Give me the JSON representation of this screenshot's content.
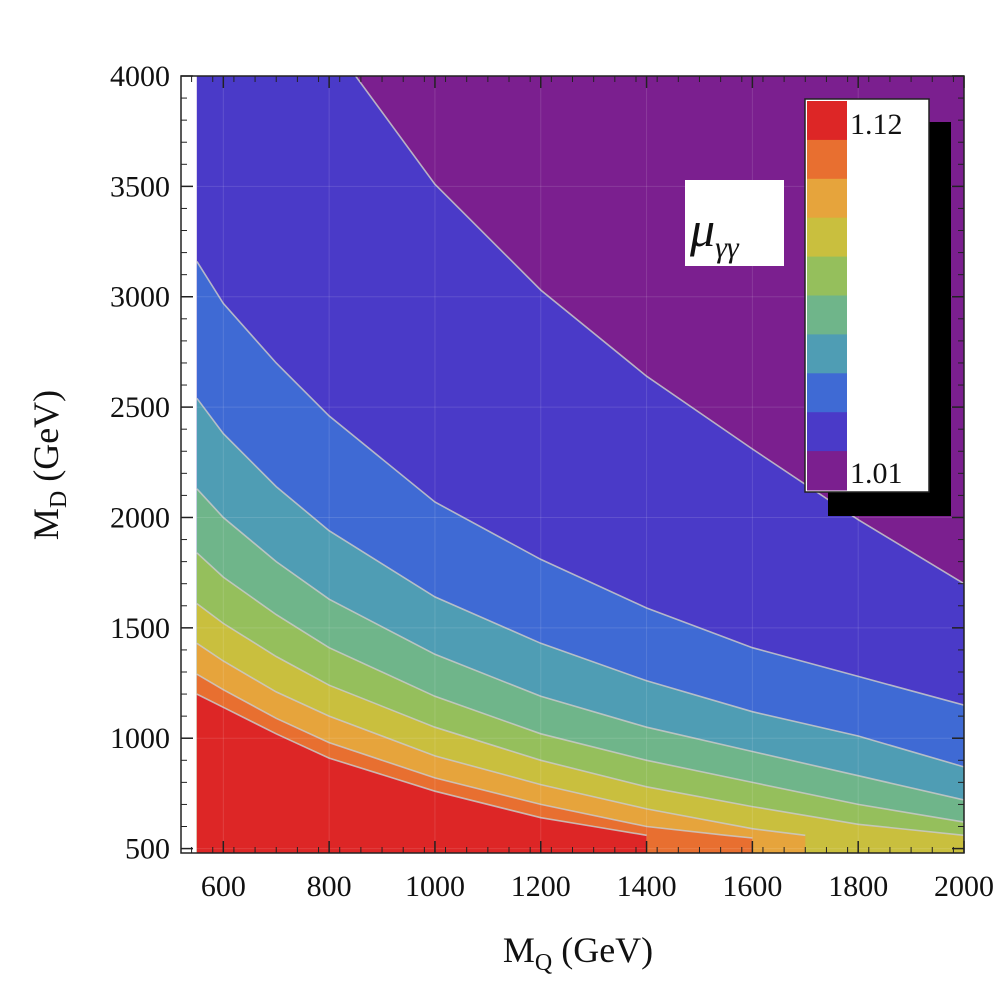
{
  "chart_data": {
    "type": "heatmap",
    "title": "",
    "xlabel": {
      "main": "M",
      "sub": "Q",
      "unit": " (GeV)"
    },
    "ylabel": {
      "main": "M",
      "sub": "D",
      "unit": " (GeV)"
    },
    "xlim": [
      520,
      2000
    ],
    "ylim": [
      480,
      4000
    ],
    "x_ticks": [
      600,
      800,
      1000,
      1200,
      1400,
      1600,
      1800,
      2000
    ],
    "y_ticks": [
      500,
      1000,
      1500,
      2000,
      2500,
      3000,
      3500,
      4000
    ],
    "x_tick_labels": [
      "600",
      "800",
      "1000",
      "1200",
      "1400",
      "1600",
      "1800",
      "2000"
    ],
    "y_tick_labels": [
      "500",
      "1000",
      "1500",
      "2000",
      "2500",
      "3000",
      "3500",
      "4000"
    ],
    "data_domain": {
      "x_min": 550,
      "x_max": 2000,
      "y_max": 4000
    },
    "grid": true,
    "legend": {
      "position": "top-right",
      "symbol_main": "μ",
      "symbol_sub": "γγ",
      "max_label": "1.12",
      "min_label": "1.01"
    },
    "colors": [
      "#7b1f8f",
      "#4a3ac8",
      "#3f6ad4",
      "#4f9db4",
      "#6fb58a",
      "#95bf5c",
      "#c9bf3e",
      "#e6a43c",
      "#e86f30",
      "#dd2626"
    ],
    "contour_levels": [
      {
        "level": 1,
        "points": [
          [
            850,
            4000
          ],
          [
            1000,
            3510
          ],
          [
            1200,
            3030
          ],
          [
            1400,
            2640
          ],
          [
            1600,
            2310
          ],
          [
            1800,
            1990
          ],
          [
            2000,
            1700
          ]
        ]
      },
      {
        "level": 2,
        "points": [
          [
            550,
            3160
          ],
          [
            600,
            2970
          ],
          [
            700,
            2700
          ],
          [
            800,
            2460
          ],
          [
            1000,
            2070
          ],
          [
            1200,
            1810
          ],
          [
            1400,
            1590
          ],
          [
            1600,
            1410
          ],
          [
            1800,
            1280
          ],
          [
            2000,
            1150
          ]
        ]
      },
      {
        "level": 3,
        "points": [
          [
            550,
            2540
          ],
          [
            600,
            2380
          ],
          [
            700,
            2140
          ],
          [
            800,
            1940
          ],
          [
            1000,
            1640
          ],
          [
            1200,
            1430
          ],
          [
            1400,
            1260
          ],
          [
            1600,
            1120
          ],
          [
            1800,
            1010
          ],
          [
            2000,
            870
          ]
        ]
      },
      {
        "level": 4,
        "points": [
          [
            550,
            2130
          ],
          [
            600,
            2000
          ],
          [
            700,
            1800
          ],
          [
            800,
            1630
          ],
          [
            1000,
            1380
          ],
          [
            1200,
            1190
          ],
          [
            1400,
            1050
          ],
          [
            1600,
            940
          ],
          [
            1800,
            830
          ],
          [
            2000,
            720
          ]
        ]
      },
      {
        "level": 5,
        "points": [
          [
            550,
            1840
          ],
          [
            600,
            1730
          ],
          [
            700,
            1560
          ],
          [
            800,
            1410
          ],
          [
            1000,
            1190
          ],
          [
            1200,
            1020
          ],
          [
            1400,
            900
          ],
          [
            1600,
            800
          ],
          [
            1800,
            700
          ],
          [
            2000,
            620
          ]
        ]
      },
      {
        "level": 6,
        "points": [
          [
            550,
            1610
          ],
          [
            600,
            1520
          ],
          [
            700,
            1370
          ],
          [
            800,
            1240
          ],
          [
            1000,
            1050
          ],
          [
            1200,
            900
          ],
          [
            1400,
            780
          ],
          [
            1600,
            690
          ],
          [
            1800,
            610
          ],
          [
            2000,
            560
          ]
        ]
      },
      {
        "level": 7,
        "points": [
          [
            550,
            1430
          ],
          [
            600,
            1350
          ],
          [
            700,
            1210
          ],
          [
            800,
            1100
          ],
          [
            1000,
            920
          ],
          [
            1200,
            790
          ],
          [
            1400,
            680
          ],
          [
            1600,
            590
          ],
          [
            1700,
            560
          ]
        ]
      },
      {
        "level": 8,
        "points": [
          [
            550,
            1290
          ],
          [
            600,
            1220
          ],
          [
            700,
            1090
          ],
          [
            800,
            980
          ],
          [
            1000,
            820
          ],
          [
            1200,
            700
          ],
          [
            1400,
            600
          ],
          [
            1550,
            560
          ],
          [
            1600,
            548
          ]
        ]
      },
      {
        "level": 9,
        "points": [
          [
            550,
            1200
          ],
          [
            600,
            1140
          ],
          [
            700,
            1020
          ],
          [
            800,
            910
          ],
          [
            1000,
            760
          ],
          [
            1200,
            640
          ],
          [
            1300,
            600
          ],
          [
            1400,
            560
          ]
        ]
      }
    ]
  }
}
